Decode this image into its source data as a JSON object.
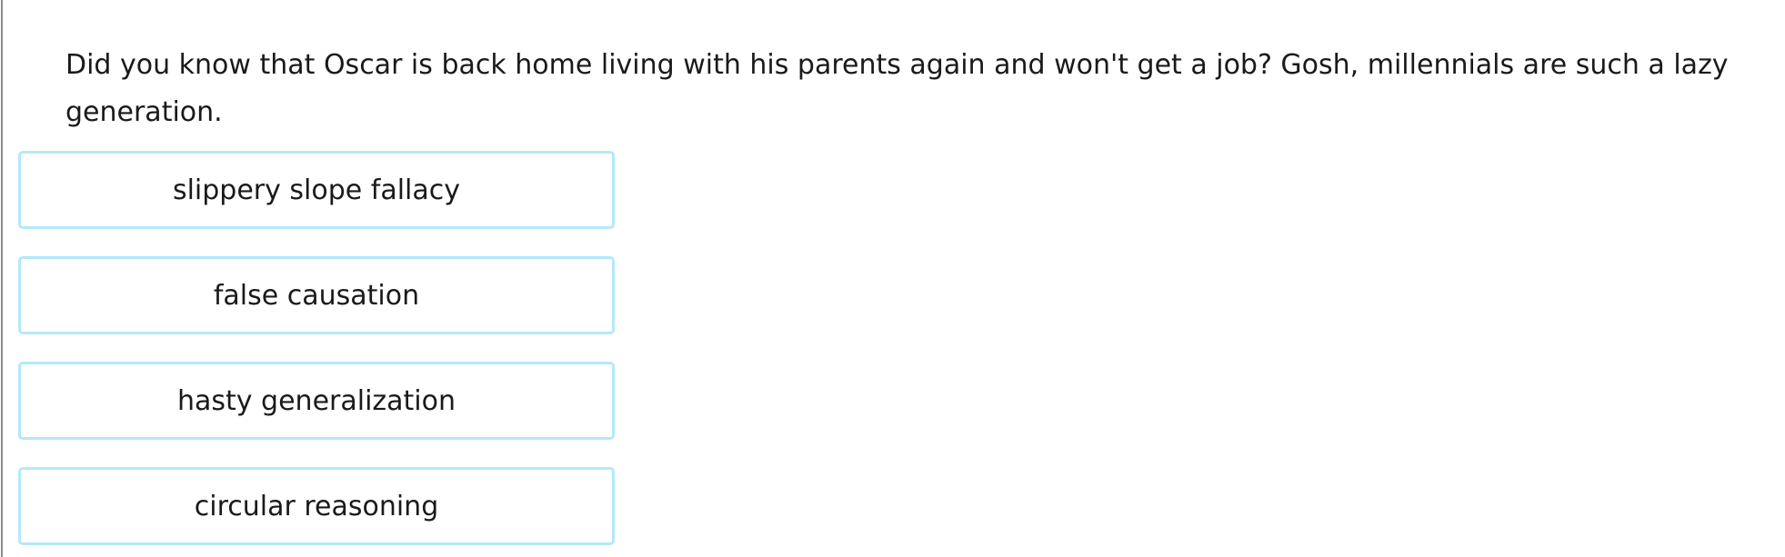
{
  "question": {
    "text": "Did you know that Oscar is back home living with his parents again and won't get a job? Gosh, millennials are such a lazy generation."
  },
  "choices": [
    {
      "label": "slippery slope fallacy"
    },
    {
      "label": "false causation"
    },
    {
      "label": "hasty generalization"
    },
    {
      "label": "circular reasoning"
    }
  ],
  "colors": {
    "choice_border": "#b3e9fa",
    "text": "#1a1a1a"
  }
}
